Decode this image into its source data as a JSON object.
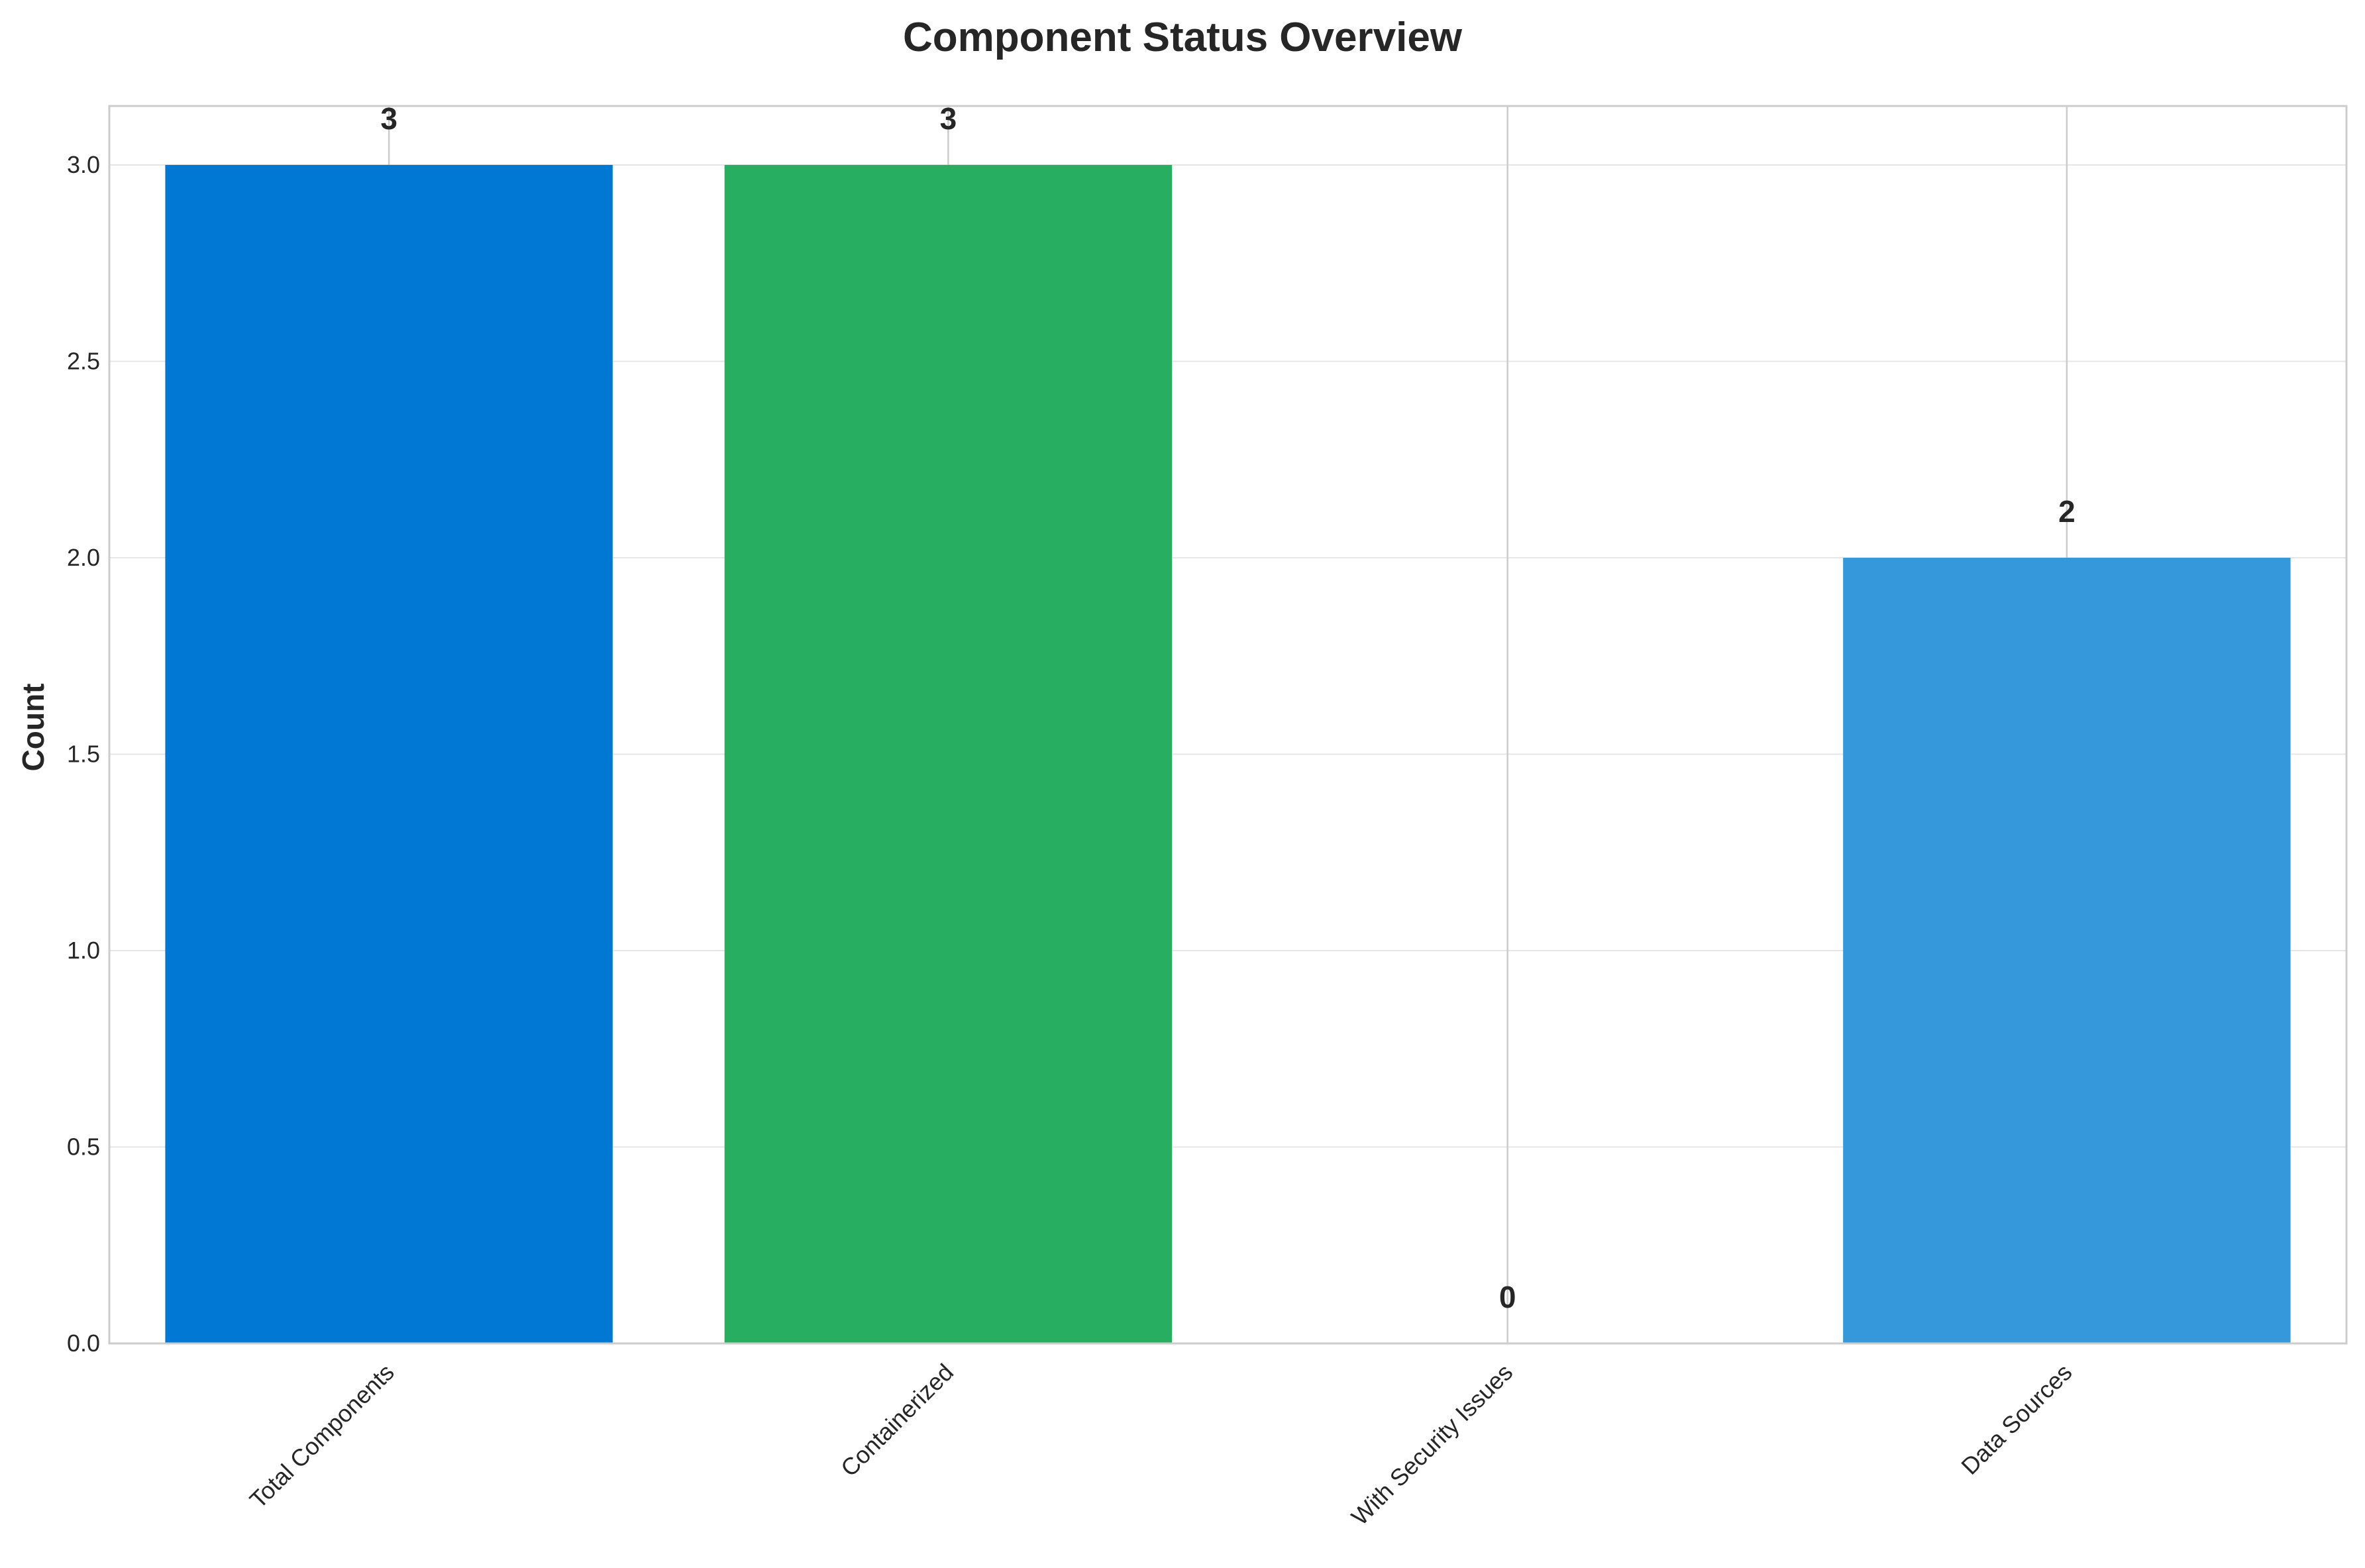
{
  "chart_data": {
    "type": "bar",
    "title": "Component Status Overview",
    "xlabel": "",
    "ylabel": "Count",
    "categories": [
      "Total Components",
      "Containerized",
      "With Security Issues",
      "Data Sources"
    ],
    "values": [
      3,
      3,
      0,
      2
    ],
    "value_labels": [
      "3",
      "3",
      "0",
      "2"
    ],
    "colors": [
      "#0078d4",
      "#27ae60",
      "#e74c3c",
      "#3498db"
    ],
    "ylim": [
      0,
      3.15
    ],
    "yticks": [
      0.0,
      0.5,
      1.0,
      1.5,
      2.0,
      2.5,
      3.0
    ],
    "ytick_labels": [
      "0.0",
      "0.5",
      "1.0",
      "1.5",
      "2.0",
      "2.5",
      "3.0"
    ],
    "grid": true,
    "legend": "none"
  },
  "style": {
    "grid_color": "#e6e6e6",
    "vgrid_color": "#cccccc",
    "axis_color": "#cccccc",
    "text_color": "#262626"
  }
}
